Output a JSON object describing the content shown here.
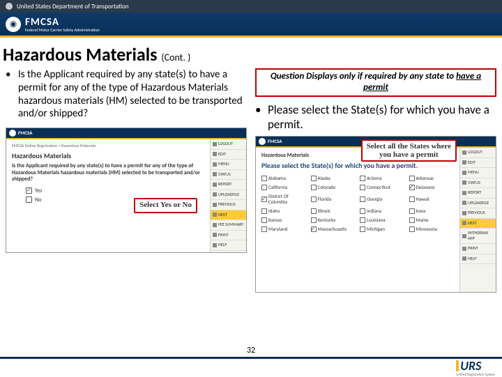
{
  "topbar": {
    "text": "United States Department of Transportation"
  },
  "brand": {
    "name": "FMCSA",
    "tagline": "Federal Motor Carrier Safety Administration"
  },
  "title": {
    "main": "Hazardous Materials",
    "cont": "(Cont. )"
  },
  "left": {
    "bullet": "Is the Applicant required by any state(s) to have a permit for any of the type of Hazardous Materials hazardous materials (HM) selected to be transported and/or shipped?"
  },
  "right": {
    "hint_prefix": "Question Displays only if required by any state to",
    "hint_underlined": "have a permit",
    "bullet": "Please select the State(s) for which you have a permit."
  },
  "mini1": {
    "crumbs": "FMCSA Online Registration > Hazardous Materials",
    "section": "Hazardous Materials",
    "question": "Is the Applicant required by any state(s) to have a permit for any of the type of Hazardous Materials hazardous materials (HM) selected to be transported and/or shipped?",
    "opt_yes": "Yes",
    "opt_no": "No",
    "callout": "Select Yes or No",
    "side": [
      "LOGOUT",
      "EDIT",
      "MENU",
      "STATUS",
      "REPORT",
      "UPLOADFILE",
      "PREVIOUS",
      "NEXT",
      "FEE SUMMARY",
      "PRINT",
      "HELP"
    ]
  },
  "mini2": {
    "question": "Please select the State(s) for which you have a permit.",
    "callout_l1": "Select all the States where",
    "callout_l2": "you have a permit",
    "states": [
      [
        "Alabama",
        0
      ],
      [
        "Alaska",
        0
      ],
      [
        "Arizona",
        0
      ],
      [
        "Arkansas",
        0
      ],
      [
        "California",
        0
      ],
      [
        "Colorado",
        0
      ],
      [
        "Connecticut",
        0
      ],
      [
        "Delaware",
        1
      ],
      [
        "District Of Columbia",
        1
      ],
      [
        "Florida",
        0
      ],
      [
        "Georgia",
        0
      ],
      [
        "Hawaii",
        0
      ],
      [
        "Idaho",
        0
      ],
      [
        "Illinois",
        0
      ],
      [
        "Indiana",
        0
      ],
      [
        "Iowa",
        0
      ],
      [
        "Kansas",
        0
      ],
      [
        "Kentucky",
        0
      ],
      [
        "Louisiana",
        0
      ],
      [
        "Maine",
        0
      ],
      [
        "Maryland",
        0
      ],
      [
        "Massachusetts",
        1
      ],
      [
        "Michigan",
        0
      ],
      [
        "Minnesota",
        0
      ]
    ],
    "side": [
      "LOGOUT",
      "EDIT",
      "MENU",
      "STATUS",
      "REPORT",
      "UPLOADFILE",
      "PREVIOUS",
      "NEXT",
      "WITHDRAW APP",
      "PRINT",
      "HELP"
    ]
  },
  "page_number": "32",
  "footer": {
    "logo": "URS",
    "sub": "Unified Registration System"
  },
  "colors": {
    "gov_blue": "#0a2f56",
    "accent_yellow": "#f0b830",
    "alert_red": "#c00000"
  }
}
